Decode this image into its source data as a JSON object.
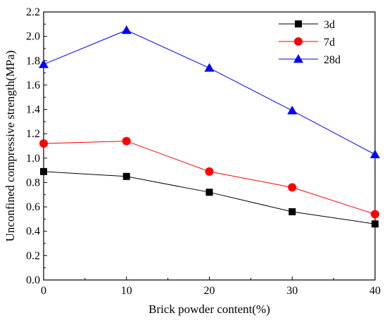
{
  "chart_data": {
    "type": "line",
    "xlabel": "Brick powder content(%)",
    "ylabel": "Unconfined compressive strength(MPa)",
    "x": [
      0,
      10,
      20,
      30,
      40
    ],
    "xlim": [
      0,
      40
    ],
    "ylim": [
      0,
      2.2
    ],
    "xticks": [
      "0",
      "10",
      "20",
      "30",
      "40"
    ],
    "yticks": [
      "0.0",
      "0.2",
      "0.4",
      "0.6",
      "0.8",
      "1.0",
      "1.2",
      "1.4",
      "1.6",
      "1.8",
      "2.0",
      "2.2"
    ],
    "grid": false,
    "legend_position": "top-right",
    "series": [
      {
        "name": "3d",
        "color": "#000000",
        "marker": "square",
        "values": [
          0.89,
          0.85,
          0.72,
          0.56,
          0.46
        ]
      },
      {
        "name": "7d",
        "color": "#ff0000",
        "marker": "circle",
        "values": [
          1.12,
          1.14,
          0.89,
          0.76,
          0.54
        ]
      },
      {
        "name": "28d",
        "color": "#0000ff",
        "marker": "triangle",
        "values": [
          1.77,
          2.05,
          1.74,
          1.39,
          1.03
        ]
      }
    ]
  }
}
